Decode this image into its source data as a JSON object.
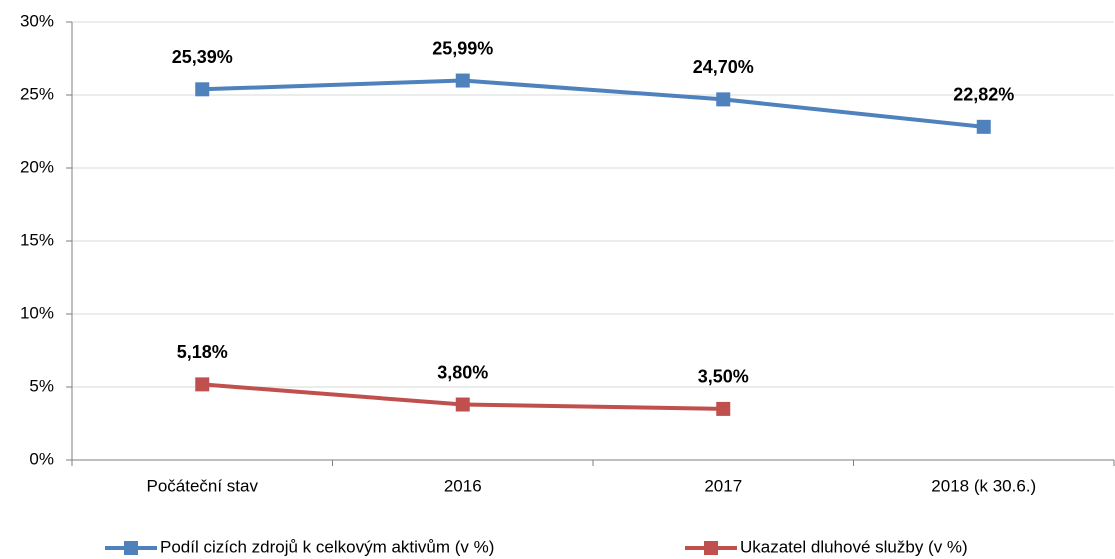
{
  "chart_data": {
    "type": "line",
    "categories": [
      "Počáteční stav",
      "2016",
      "2017",
      "2018 (k 30.6.)"
    ],
    "series": [
      {
        "name": "Podíl cizích zdrojů k celkovým aktivům (v %)",
        "color": "#4f81bd",
        "values": [
          25.39,
          25.99,
          24.7,
          22.82
        ],
        "value_labels": [
          "25,39%",
          "25,99%",
          "24,70%",
          "22,82%"
        ]
      },
      {
        "name": "Ukazatel dluhové služby (v %)",
        "color": "#c0504d",
        "values": [
          5.18,
          3.8,
          3.5,
          null
        ],
        "value_labels": [
          "5,18%",
          "3,80%",
          "3,50%",
          null
        ]
      }
    ],
    "ylim": [
      0,
      30
    ],
    "yticks": [
      {
        "value": 0,
        "label": "0%"
      },
      {
        "value": 5,
        "label": "5%"
      },
      {
        "value": 10,
        "label": "10%"
      },
      {
        "value": 15,
        "label": "15%"
      },
      {
        "value": 20,
        "label": "20%"
      },
      {
        "value": 25,
        "label": "25%"
      },
      {
        "value": 30,
        "label": "30%"
      }
    ],
    "grid": true,
    "legend": "bottom"
  }
}
